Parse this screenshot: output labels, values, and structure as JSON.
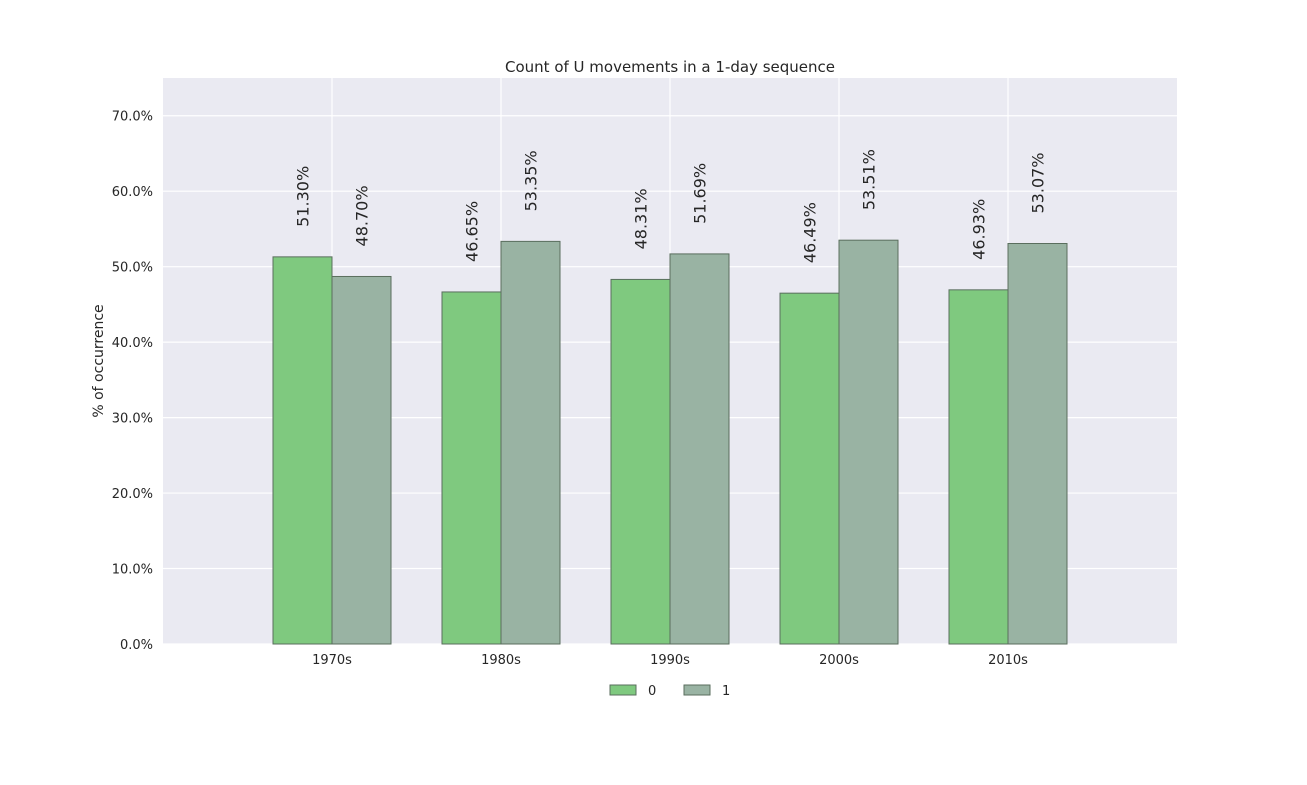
{
  "chart_data": {
    "type": "bar",
    "title": "Count of U movements in a 1-day sequence",
    "xlabel": "",
    "ylabel": "% of occurrence",
    "categories": [
      "1970s",
      "1980s",
      "1990s",
      "2000s",
      "2010s"
    ],
    "series": [
      {
        "name": "0",
        "color": "#7fc97f",
        "values": [
          51.3,
          46.65,
          48.31,
          46.49,
          46.93
        ],
        "labels": [
          "51.30%",
          "46.65%",
          "48.31%",
          "46.49%",
          "46.93%"
        ]
      },
      {
        "name": "1",
        "color": "#99b3a3",
        "values": [
          48.7,
          53.35,
          51.69,
          53.51,
          53.07
        ],
        "labels": [
          "48.70%",
          "53.35%",
          "51.69%",
          "53.51%",
          "53.07%"
        ]
      }
    ],
    "ylim": [
      0,
      75
    ],
    "yticks": [
      0,
      10,
      20,
      30,
      40,
      50,
      60,
      70
    ],
    "ytick_labels": [
      "0.0%",
      "10.0%",
      "20.0%",
      "30.0%",
      "40.0%",
      "50.0%",
      "60.0%",
      "70.0%"
    ],
    "grid": true,
    "legend_position": "bottom-center",
    "background_color": "#eaeaf2"
  }
}
